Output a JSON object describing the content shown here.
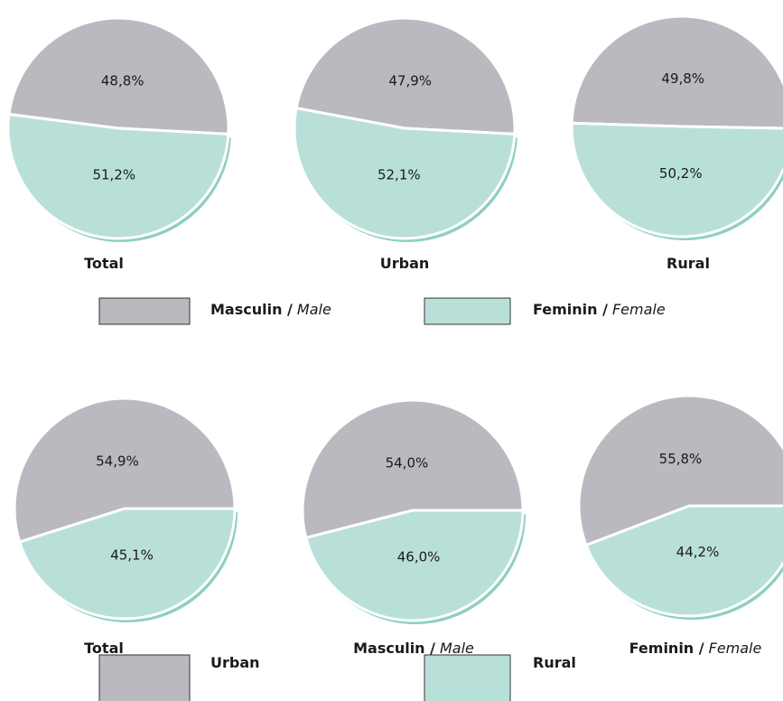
{
  "chart_data": [
    {
      "type": "pie",
      "title": [
        "Total"
      ],
      "values": [
        48.8,
        51.2
      ],
      "value_labels": [
        "48,8%",
        "51,2%"
      ],
      "colors": [
        "#b9b9bf",
        "#b9e0d8"
      ]
    },
    {
      "type": "pie",
      "title": [
        "Urban"
      ],
      "values": [
        47.9,
        52.1
      ],
      "value_labels": [
        "47,9%",
        "52,1%"
      ],
      "colors": [
        "#b9b9bf",
        "#b9e0d8"
      ]
    },
    {
      "type": "pie",
      "title": [
        "Rural"
      ],
      "values": [
        49.8,
        50.2
      ],
      "value_labels": [
        "49,8%",
        "50,2%"
      ],
      "colors": [
        "#b9b9bf",
        "#b9e0d8"
      ]
    },
    {
      "type": "pie",
      "title": [
        "Total"
      ],
      "values": [
        54.9,
        45.1
      ],
      "value_labels": [
        "54,9%",
        "45,1%"
      ],
      "colors": [
        "#b9b9bf",
        "#b9e0d8"
      ]
    },
    {
      "type": "pie",
      "title": [
        "Masculin /",
        "Male"
      ],
      "values": [
        54.0,
        46.0
      ],
      "value_labels": [
        "54,0%",
        "46,0%"
      ],
      "colors": [
        "#b9b9bf",
        "#b9e0d8"
      ]
    },
    {
      "type": "pie",
      "title": [
        "Feminin /",
        "Female"
      ],
      "values": [
        55.8,
        44.2
      ],
      "value_labels": [
        "55,8%",
        "44,2%"
      ],
      "colors": [
        "#b9b9bf",
        "#b9e0d8"
      ]
    }
  ],
  "legends": [
    {
      "items": [
        {
          "label": [
            "Masculin /",
            "Male"
          ],
          "color": "#b9b9bf"
        },
        {
          "label": [
            "Feminin /",
            "Female"
          ],
          "color": "#b9e0d8"
        }
      ]
    },
    {
      "items": [
        {
          "label": [
            "Urban"
          ],
          "color": "#b9b9bf"
        },
        {
          "label": [
            "Rural"
          ],
          "color": "#b9e0d8"
        }
      ]
    }
  ]
}
